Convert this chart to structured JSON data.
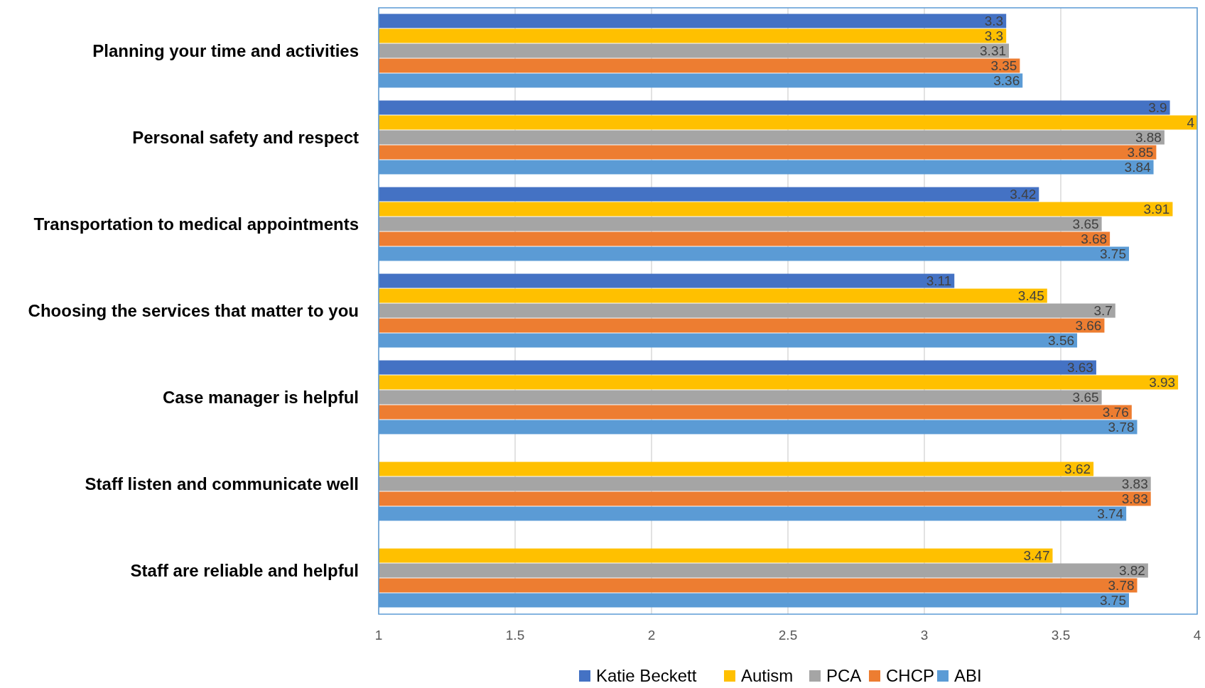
{
  "chart_data": {
    "type": "bar",
    "orientation": "horizontal",
    "categories": [
      "Planning your time and activities",
      "Personal safety and respect",
      "Transportation to medical appointments",
      "Choosing the services that matter to you",
      "Case manager is helpful",
      "Staff listen and communicate well",
      "Staff are reliable and helpful"
    ],
    "series": [
      {
        "name": "Katie Beckett",
        "color": "#4472c4",
        "values": [
          3.3,
          3.9,
          3.42,
          3.11,
          3.63,
          null,
          null
        ]
      },
      {
        "name": "Autism",
        "color": "#ffc000",
        "values": [
          3.3,
          4,
          3.91,
          3.45,
          3.93,
          3.62,
          3.47
        ]
      },
      {
        "name": "PCA",
        "color": "#a5a5a5",
        "values": [
          3.31,
          3.88,
          3.65,
          3.7,
          3.65,
          3.83,
          3.82
        ]
      },
      {
        "name": "CHCP",
        "color": "#ed7d31",
        "values": [
          3.35,
          3.85,
          3.68,
          3.66,
          3.76,
          3.83,
          3.78
        ]
      },
      {
        "name": "ABI",
        "color": "#5b9bd5",
        "values": [
          3.36,
          3.84,
          3.75,
          3.56,
          3.78,
          3.74,
          3.75
        ]
      }
    ],
    "xlim": [
      1,
      4
    ],
    "xticks": [
      1,
      1.5,
      2,
      2.5,
      3,
      3.5,
      4
    ],
    "grid": "x",
    "legend": "bottom",
    "data_labels": true
  }
}
